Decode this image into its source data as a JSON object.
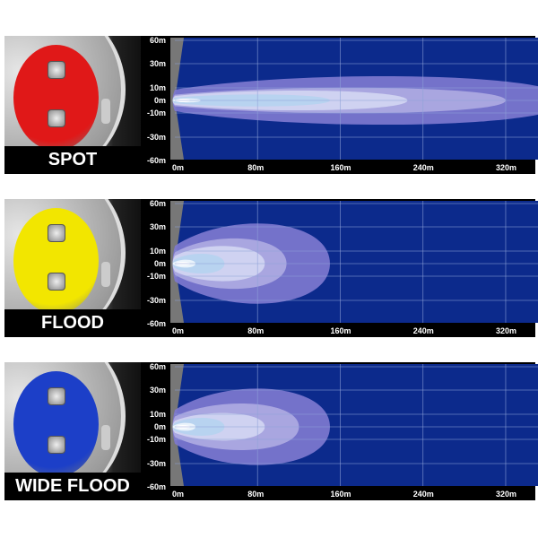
{
  "chart_data": [
    {
      "type": "area",
      "title": "SPOT",
      "lens_color": "#e01818",
      "y_ticks": [
        "60m",
        "30m",
        "10m",
        "0m",
        "-10m",
        "-30m",
        "-60m"
      ],
      "x_ticks": [
        "0m",
        "80m",
        "160m",
        "240m",
        "320m"
      ],
      "xlim": [
        0,
        360
      ],
      "ylim": [
        -60,
        60
      ],
      "grid": true,
      "zones": [
        {
          "distance": 380,
          "half_width": 25
        },
        {
          "distance": 320,
          "half_width": 13
        },
        {
          "distance": 225,
          "half_width": 10
        },
        {
          "distance": 150,
          "half_width": 6
        },
        {
          "distance": 25,
          "half_width": 2
        }
      ]
    },
    {
      "type": "area",
      "title": "FLOOD",
      "lens_color": "#f2e600",
      "y_ticks": [
        "60m",
        "30m",
        "10m",
        "0m",
        "-10m",
        "-30m",
        "-60m"
      ],
      "x_ticks": [
        "0m",
        "80m",
        "160m",
        "240m",
        "320m"
      ],
      "xlim": [
        0,
        360
      ],
      "ylim": [
        -60,
        60
      ],
      "grid": true,
      "zones": [
        {
          "distance": 150,
          "half_width": 48
        },
        {
          "distance": 108,
          "half_width": 26
        },
        {
          "distance": 87,
          "half_width": 18
        },
        {
          "distance": 48,
          "half_width": 10
        },
        {
          "distance": 20,
          "half_width": 4
        }
      ]
    },
    {
      "type": "area",
      "title": "WIDE FLOOD",
      "lens_color": "#1c3fc8",
      "y_ticks": [
        "60m",
        "30m",
        "10m",
        "0m",
        "-10m",
        "-30m",
        "-60m"
      ],
      "x_ticks": [
        "0m",
        "80m",
        "160m",
        "240m",
        "320m"
      ],
      "xlim": [
        0,
        360
      ],
      "ylim": [
        -60,
        60
      ],
      "grid": true,
      "zones": [
        {
          "distance": 150,
          "half_width": 45
        },
        {
          "distance": 120,
          "half_width": 24
        },
        {
          "distance": 87,
          "half_width": 14
        },
        {
          "distance": 48,
          "half_width": 9
        },
        {
          "distance": 20,
          "half_width": 4
        }
      ]
    }
  ],
  "colors": {
    "background": "#0c2a8c",
    "grid": "#8fa2d8",
    "zones": [
      "#7e78cf",
      "#aeaae2",
      "#d2d6f2",
      "#b6d2f0",
      "#eef5fc"
    ]
  }
}
